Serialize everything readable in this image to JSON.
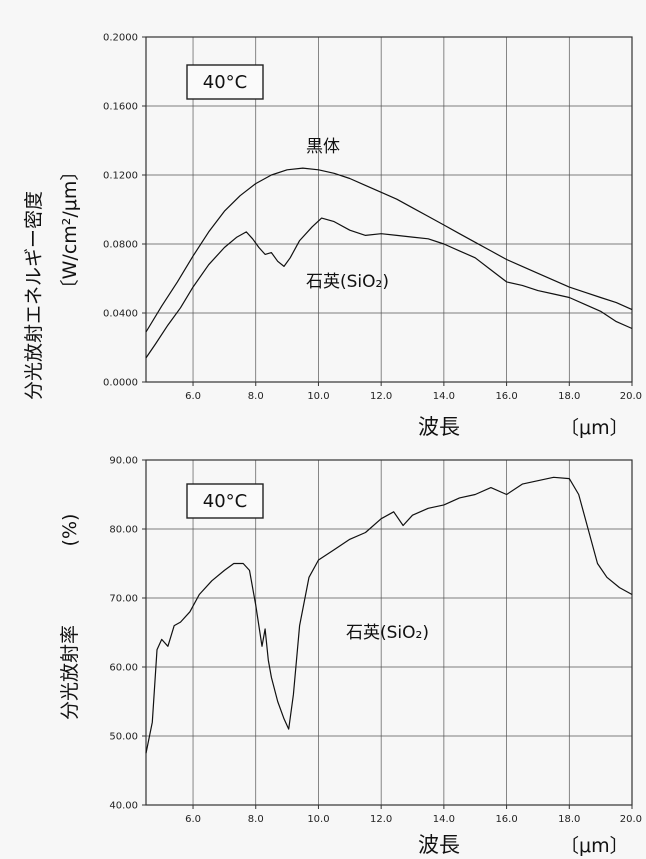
{
  "chart_data": [
    {
      "type": "line",
      "ylabel": "分光放射エネルギー密度",
      "yunit": "〔W/cm²/μm〕",
      "xlabel": "波長",
      "xunit": "〔μm〕",
      "condition_label": "40°C",
      "xlim": [
        4.5,
        20.0
      ],
      "ylim": [
        0.0,
        0.2
      ],
      "x_ticks": [
        6.0,
        8.0,
        10.0,
        12.0,
        14.0,
        16.0,
        18.0,
        20.0
      ],
      "x_tick_labels": [
        "6.0",
        "8.0",
        "10.0",
        "12.0",
        "14.0",
        "16.0",
        "18.0",
        "20.0"
      ],
      "y_ticks": [
        0.0,
        0.04,
        0.08,
        0.12,
        0.16,
        0.2
      ],
      "y_tick_labels": [
        "0.0000",
        "0.0400",
        "0.0800",
        "0.1200",
        "0.1600",
        "0.2000"
      ],
      "grid": true,
      "series": [
        {
          "name": "黒体",
          "color": "#111111",
          "points": [
            [
              4.5,
              0.029
            ],
            [
              5.0,
              0.044
            ],
            [
              5.5,
              0.058
            ],
            [
              6.0,
              0.073
            ],
            [
              6.5,
              0.087
            ],
            [
              7.0,
              0.099
            ],
            [
              7.5,
              0.108
            ],
            [
              8.0,
              0.115
            ],
            [
              8.5,
              0.12
            ],
            [
              9.0,
              0.123
            ],
            [
              9.5,
              0.124
            ],
            [
              10.0,
              0.123
            ],
            [
              10.5,
              0.121
            ],
            [
              11.0,
              0.118
            ],
            [
              11.5,
              0.114
            ],
            [
              12.0,
              0.11
            ],
            [
              12.5,
              0.106
            ],
            [
              13.0,
              0.101
            ],
            [
              13.5,
              0.096
            ],
            [
              14.0,
              0.091
            ],
            [
              14.5,
              0.086
            ],
            [
              15.0,
              0.081
            ],
            [
              15.5,
              0.076
            ],
            [
              16.0,
              0.071
            ],
            [
              16.5,
              0.067
            ],
            [
              17.0,
              0.063
            ],
            [
              17.5,
              0.059
            ],
            [
              18.0,
              0.055
            ],
            [
              18.5,
              0.052
            ],
            [
              19.0,
              0.049
            ],
            [
              19.5,
              0.046
            ],
            [
              20.0,
              0.042
            ]
          ]
        },
        {
          "name": "石英(SiO₂)",
          "color": "#111111",
          "points": [
            [
              4.5,
              0.014
            ],
            [
              4.8,
              0.022
            ],
            [
              5.2,
              0.033
            ],
            [
              5.6,
              0.043
            ],
            [
              6.0,
              0.055
            ],
            [
              6.5,
              0.068
            ],
            [
              7.0,
              0.078
            ],
            [
              7.4,
              0.084
            ],
            [
              7.7,
              0.087
            ],
            [
              7.9,
              0.083
            ],
            [
              8.1,
              0.078
            ],
            [
              8.3,
              0.074
            ],
            [
              8.5,
              0.075
            ],
            [
              8.7,
              0.07
            ],
            [
              8.9,
              0.067
            ],
            [
              9.1,
              0.072
            ],
            [
              9.4,
              0.082
            ],
            [
              9.8,
              0.09
            ],
            [
              10.1,
              0.095
            ],
            [
              10.5,
              0.093
            ],
            [
              11.0,
              0.088
            ],
            [
              11.5,
              0.085
            ],
            [
              12.0,
              0.086
            ],
            [
              12.5,
              0.085
            ],
            [
              13.0,
              0.084
            ],
            [
              13.5,
              0.083
            ],
            [
              14.0,
              0.08
            ],
            [
              14.5,
              0.076
            ],
            [
              15.0,
              0.072
            ],
            [
              15.5,
              0.065
            ],
            [
              16.0,
              0.058
            ],
            [
              16.5,
              0.056
            ],
            [
              17.0,
              0.053
            ],
            [
              17.5,
              0.051
            ],
            [
              18.0,
              0.049
            ],
            [
              18.5,
              0.045
            ],
            [
              19.0,
              0.041
            ],
            [
              19.5,
              0.035
            ],
            [
              20.0,
              0.031
            ]
          ]
        }
      ]
    },
    {
      "type": "line",
      "ylabel": "分光放射率",
      "yunit": "(%)",
      "xlabel": "波長",
      "xunit": "〔μm〕",
      "condition_label": "40°C",
      "xlim": [
        4.5,
        20.0
      ],
      "ylim": [
        40.0,
        90.0
      ],
      "x_ticks": [
        6.0,
        8.0,
        10.0,
        12.0,
        14.0,
        16.0,
        18.0,
        20.0
      ],
      "x_tick_labels": [
        "6.0",
        "8.0",
        "10.0",
        "12.0",
        "14.0",
        "16.0",
        "18.0",
        "20.0"
      ],
      "y_ticks": [
        40.0,
        50.0,
        60.0,
        70.0,
        80.0,
        90.0
      ],
      "y_tick_labels": [
        "40.00",
        "50.00",
        "60.00",
        "70.00",
        "80.00",
        "90.00"
      ],
      "grid": true,
      "series": [
        {
          "name": "石英(SiO₂)",
          "color": "#111111",
          "points": [
            [
              4.5,
              47.5
            ],
            [
              4.7,
              52.0
            ],
            [
              4.85,
              62.5
            ],
            [
              5.0,
              64.0
            ],
            [
              5.2,
              63.0
            ],
            [
              5.4,
              66.0
            ],
            [
              5.6,
              66.5
            ],
            [
              5.9,
              68.0
            ],
            [
              6.2,
              70.5
            ],
            [
              6.6,
              72.5
            ],
            [
              7.0,
              74.0
            ],
            [
              7.3,
              75.0
            ],
            [
              7.6,
              75.0
            ],
            [
              7.8,
              74.0
            ],
            [
              8.0,
              69.0
            ],
            [
              8.2,
              63.0
            ],
            [
              8.3,
              65.5
            ],
            [
              8.4,
              61.0
            ],
            [
              8.5,
              58.5
            ],
            [
              8.7,
              55.0
            ],
            [
              8.9,
              52.5
            ],
            [
              9.05,
              51.0
            ],
            [
              9.2,
              56.0
            ],
            [
              9.4,
              66.0
            ],
            [
              9.7,
              73.0
            ],
            [
              10.0,
              75.5
            ],
            [
              10.5,
              77.0
            ],
            [
              11.0,
              78.5
            ],
            [
              11.5,
              79.5
            ],
            [
              12.0,
              81.5
            ],
            [
              12.4,
              82.5
            ],
            [
              12.7,
              80.5
            ],
            [
              13.0,
              82.0
            ],
            [
              13.5,
              83.0
            ],
            [
              14.0,
              83.5
            ],
            [
              14.5,
              84.5
            ],
            [
              15.0,
              85.0
            ],
            [
              15.5,
              86.0
            ],
            [
              16.0,
              85.0
            ],
            [
              16.5,
              86.5
            ],
            [
              17.0,
              87.0
            ],
            [
              17.5,
              87.5
            ],
            [
              18.0,
              87.3
            ],
            [
              18.3,
              85.0
            ],
            [
              18.6,
              80.0
            ],
            [
              18.9,
              75.0
            ],
            [
              19.2,
              73.0
            ],
            [
              19.6,
              71.5
            ],
            [
              20.0,
              70.5
            ]
          ]
        }
      ]
    }
  ]
}
